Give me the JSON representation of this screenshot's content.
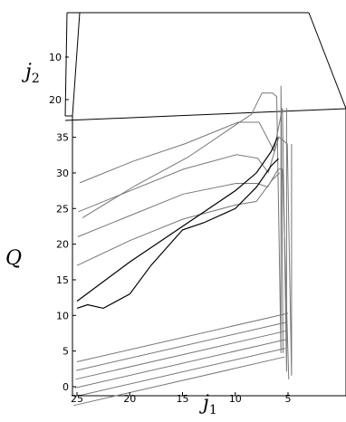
{
  "chart_data": {
    "type": "line",
    "view": "3d-box",
    "xlabel": {
      "symbol": "j",
      "subscript": "1"
    },
    "ylabel": {
      "symbol": "j",
      "subscript": "2"
    },
    "zlabel": "Q",
    "x_ticks": [
      "25",
      "20",
      "15",
      "10",
      "5"
    ],
    "y_ticks": [
      "10",
      "20"
    ],
    "z_ticks": [
      "0",
      "5",
      "10",
      "15",
      "20",
      "25",
      "30",
      "35"
    ],
    "xlim": [
      0,
      26
    ],
    "zlim": [
      0,
      38
    ],
    "grid": false,
    "line_color_dark": "#000000",
    "line_color_light": "#777777",
    "series": [
      {
        "j2": 20,
        "x": [
          25,
          20,
          15,
          10,
          9,
          8,
          7,
          6.6,
          6.2,
          6.2,
          6
        ],
        "z": [
          19.5,
          24,
          28,
          33,
          34,
          37,
          37,
          36.5,
          0.5,
          38,
          0.5
        ]
      },
      {
        "j2": 24,
        "x": [
          25,
          20,
          15,
          10,
          8,
          6.6,
          5.8,
          5.4,
          5.4
        ],
        "z": [
          26.5,
          29.5,
          32,
          35,
          35,
          31,
          37,
          0,
          37
        ]
      },
      {
        "j2": 26,
        "x": [
          25,
          20,
          15,
          10,
          8,
          7,
          6,
          5.2,
          4.8,
          4.8
        ],
        "z": [
          23.5,
          26.5,
          29.5,
          31.5,
          31,
          29,
          34,
          33,
          0.5,
          33
        ]
      },
      {
        "j2": 27,
        "x": [
          25,
          20,
          15,
          10,
          8,
          7,
          6,
          5.6,
          5
        ],
        "z": [
          20.5,
          23.5,
          26.5,
          28,
          28,
          27.5,
          30,
          30,
          0.5
        ]
      },
      {
        "j2": 28,
        "x": [
          25,
          20,
          15,
          10,
          8,
          6.5,
          5.8
        ],
        "z": [
          17,
          20.5,
          23.5,
          25.5,
          26,
          29,
          30
        ]
      },
      {
        "j2": 28,
        "x": [
          25,
          24,
          22.5,
          20,
          18,
          15,
          13,
          10,
          8,
          6.6,
          5.9
        ],
        "z": [
          11,
          11.5,
          11,
          13,
          17,
          22,
          23,
          25,
          28,
          31,
          32
        ]
      },
      {
        "j2": 28,
        "x": [
          25,
          20,
          15,
          10,
          8,
          6.6,
          6.0
        ],
        "z": [
          12,
          17.5,
          22.5,
          27.5,
          30,
          33,
          35
        ]
      },
      {
        "j2": 28,
        "x": [
          25,
          5
        ],
        "z": [
          3.5,
          10.3
        ]
      },
      {
        "j2": 29,
        "x": [
          25,
          5
        ],
        "z": [
          2.8,
          9.6
        ]
      },
      {
        "j2": 30,
        "x": [
          25,
          5
        ],
        "z": [
          2.1,
          8.9
        ]
      },
      {
        "j2": 31,
        "x": [
          25,
          5
        ],
        "z": [
          1.4,
          8.2
        ]
      },
      {
        "j2": 32,
        "x": [
          25,
          5
        ],
        "z": [
          0.7,
          7.5
        ]
      },
      {
        "j2": 33,
        "x": [
          25,
          5
        ],
        "z": [
          0,
          6.8
        ]
      }
    ]
  }
}
